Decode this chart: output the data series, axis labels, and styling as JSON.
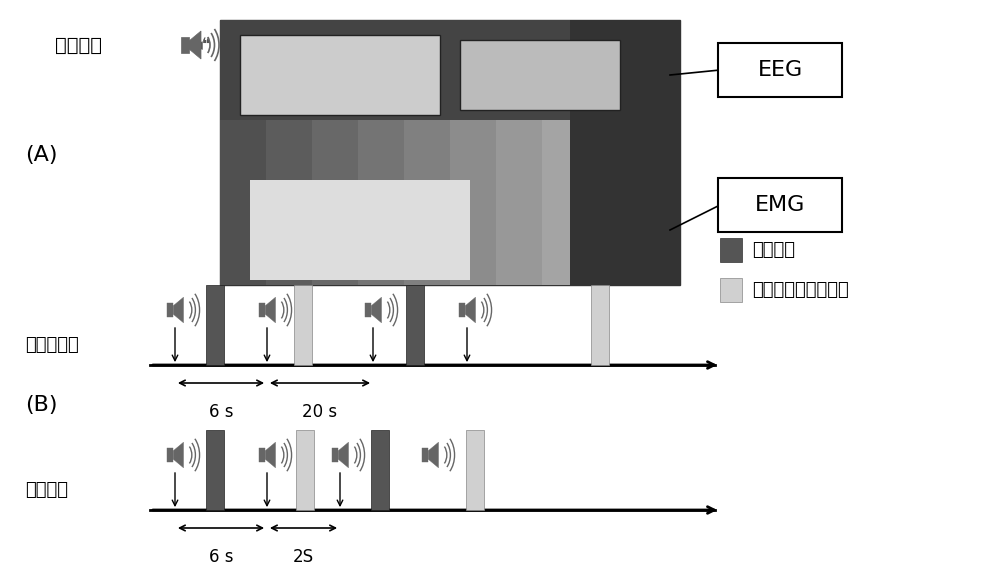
{
  "bg_color": "#ffffff",
  "sound_text": "声音提示",
  "label_A": "(A)",
  "label_B": "(B)",
  "eeg_label": "EEG",
  "emg_label": "EMG",
  "legend_dark_label": "握力动作",
  "legend_light_label": "休息并记录疲劳指数",
  "dark_bar_color": "#555555",
  "light_bar_color": "#d0d0d0",
  "non_fatigue_label": "非疲劳范式",
  "fatigue_label": "疲劳范式",
  "nf_6s_label": "6 s",
  "nf_20s_label": "20 s",
  "f_6s_label": "6 s",
  "f_2s_label": "2S",
  "font_size_chinese": 13,
  "font_size_label": 14,
  "font_size_small": 11
}
